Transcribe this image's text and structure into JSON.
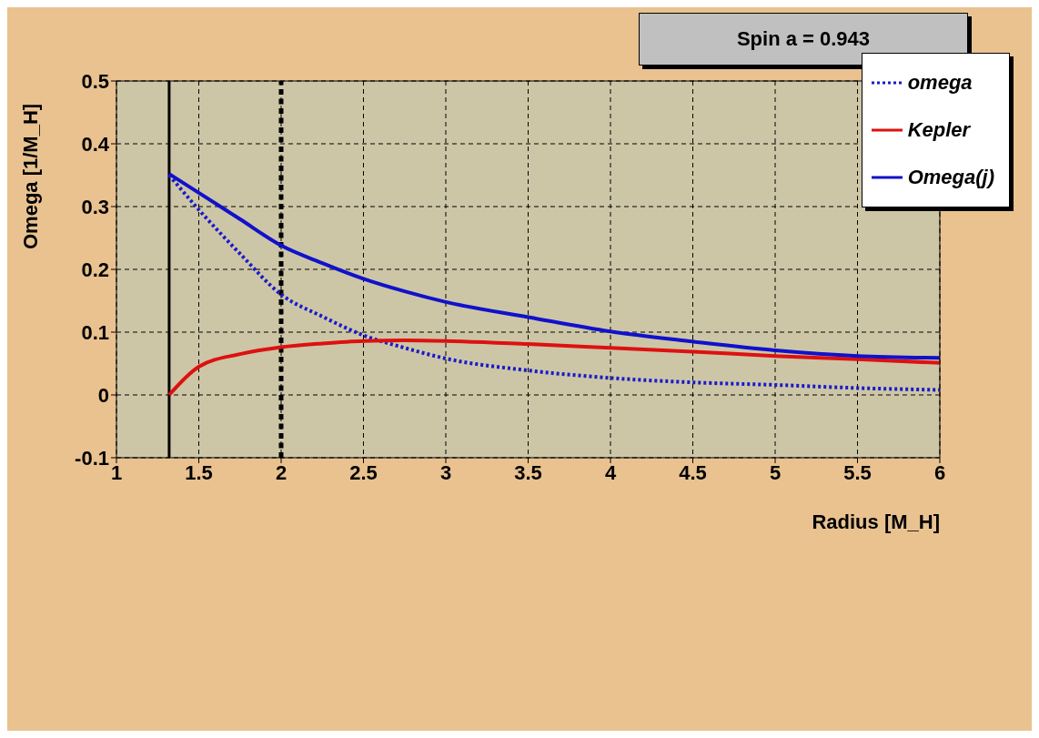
{
  "chart_data": {
    "type": "line",
    "title": "Spin a = 0.943",
    "xlabel": "Radius [M_H]",
    "ylabel": "Omega [1/M_H]",
    "x": [
      1.32,
      1.5,
      1.75,
      2,
      2.25,
      2.5,
      2.75,
      3,
      3.5,
      4,
      4.5,
      5,
      5.5,
      6
    ],
    "series": [
      {
        "name": "omega",
        "color": "#1a1acc",
        "line_style": "dotted",
        "values": [
          0.35,
          0.295,
          0.225,
          0.16,
          0.125,
          0.095,
          0.075,
          0.058,
          0.039,
          0.027,
          0.02,
          0.016,
          0.011,
          0.008
        ]
      },
      {
        "name": "Kepler",
        "color": "#dd1111",
        "line_style": "solid",
        "values": [
          0,
          0.045,
          0.065,
          0.076,
          0.082,
          0.086,
          0.087,
          0.086,
          0.081,
          0.075,
          0.069,
          0.062,
          0.057,
          0.051
        ]
      },
      {
        "name": "Omega(j)",
        "color": "#1111cc",
        "line_style": "solid",
        "values": [
          0.352,
          0.322,
          0.28,
          0.238,
          0.21,
          0.185,
          0.165,
          0.148,
          0.124,
          0.101,
          0.085,
          0.071,
          0.062,
          0.059
        ]
      }
    ],
    "xlim": [
      1,
      6
    ],
    "xticks": [
      1,
      1.5,
      2,
      2.5,
      3,
      3.5,
      4,
      4.5,
      5,
      5.5,
      6
    ],
    "ylim": [
      -0.1,
      0.5
    ],
    "yticks": [
      -0.1,
      0,
      0.1,
      0.2,
      0.3,
      0.4,
      0.5
    ],
    "ref_lines": [
      {
        "axis": "x",
        "value": 1.32,
        "color": "#000000",
        "line_style": "solid"
      },
      {
        "axis": "x",
        "value": 2,
        "color": "#000000",
        "line_style": "dashed"
      }
    ],
    "grid": true,
    "legend": "top right",
    "marker": "none"
  }
}
